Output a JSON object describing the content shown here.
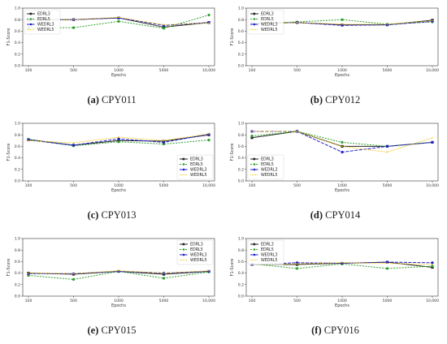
{
  "series_styles": [
    {
      "name": "EDRL3",
      "color": "#222222",
      "dash": "",
      "marker": "square"
    },
    {
      "name": "EDRL5",
      "color": "#2ca02c",
      "dash": "2,1.5",
      "marker": "circle"
    },
    {
      "name": "WEDRL3",
      "color": "#1f1fcc",
      "dash": "4,1.5",
      "marker": "circle"
    },
    {
      "name": "WEDRL5",
      "color": "#f2c300",
      "dash": "1,1",
      "marker": "none"
    }
  ],
  "chart_data": [
    {
      "type": "line",
      "caption_label": "(a)",
      "caption_text": "CPY011",
      "x": [
        "100",
        "500",
        "1000",
        "5000",
        "10,000"
      ],
      "xlabel": "Epochs",
      "ylabel": "F1-Score",
      "ylim": [
        0,
        1.0
      ],
      "yticks": [
        "0.0",
        "0.2",
        "0.4",
        "0.6",
        "0.8",
        "1.0"
      ],
      "legend_position": "top-left",
      "series": [
        {
          "name": "EDRL3",
          "values": [
            0.8,
            0.8,
            0.83,
            0.67,
            0.75
          ]
        },
        {
          "name": "EDRL5",
          "values": [
            0.66,
            0.66,
            0.77,
            0.65,
            0.88
          ]
        },
        {
          "name": "WEDRL3",
          "values": [
            0.8,
            0.8,
            0.83,
            0.7,
            0.75
          ]
        },
        {
          "name": "WEDRL5",
          "values": [
            0.8,
            0.8,
            0.84,
            0.71,
            0.74
          ]
        }
      ]
    },
    {
      "type": "line",
      "caption_label": "(b)",
      "caption_text": "CPY012",
      "x": [
        "100",
        "500",
        "1000",
        "5000",
        "10,000"
      ],
      "xlabel": "Epochs",
      "ylabel": "F1-Score",
      "ylim": [
        0,
        1.0
      ],
      "yticks": [
        "0.0",
        "0.2",
        "0.4",
        "0.6",
        "0.8",
        "1.0"
      ],
      "legend_position": "top-left",
      "series": [
        {
          "name": "EDRL3",
          "values": [
            0.73,
            0.75,
            0.71,
            0.71,
            0.79
          ]
        },
        {
          "name": "EDRL5",
          "values": [
            0.73,
            0.76,
            0.8,
            0.72,
            0.76
          ]
        },
        {
          "name": "WEDRL3",
          "values": [
            0.73,
            0.75,
            0.7,
            0.71,
            0.77
          ]
        },
        {
          "name": "WEDRL5",
          "values": [
            0.73,
            0.75,
            0.72,
            0.72,
            0.78
          ]
        }
      ]
    },
    {
      "type": "line",
      "caption_label": "(c)",
      "caption_text": "CPY013",
      "x": [
        "100",
        "500",
        "1000",
        "5000",
        "10,000"
      ],
      "xlabel": "Epochs",
      "ylabel": "F1-Score",
      "ylim": [
        0,
        1.0
      ],
      "yticks": [
        "0.0",
        "0.2",
        "0.4",
        "0.6",
        "0.8",
        "1.0"
      ],
      "legend_position": "bottom-right",
      "series": [
        {
          "name": "EDRL3",
          "values": [
            0.72,
            0.62,
            0.7,
            0.69,
            0.8
          ]
        },
        {
          "name": "EDRL5",
          "values": [
            0.72,
            0.61,
            0.68,
            0.64,
            0.71
          ]
        },
        {
          "name": "WEDRL3",
          "values": [
            0.71,
            0.62,
            0.73,
            0.67,
            0.81
          ]
        },
        {
          "name": "WEDRL5",
          "values": [
            0.7,
            0.66,
            0.76,
            0.7,
            0.82
          ]
        }
      ]
    },
    {
      "type": "line",
      "caption_label": "(d)",
      "caption_text": "CPY014",
      "x": [
        "100",
        "500",
        "1000",
        "5000",
        "10,000"
      ],
      "xlabel": "Epochs",
      "ylabel": "F1-Score",
      "ylim": [
        0,
        1.0
      ],
      "yticks": [
        "0.0",
        "0.2",
        "0.4",
        "0.6",
        "0.8",
        "1.0"
      ],
      "legend_position": "bottom-left",
      "series": [
        {
          "name": "EDRL3",
          "values": [
            0.75,
            0.86,
            0.6,
            0.6,
            0.67
          ]
        },
        {
          "name": "EDRL5",
          "values": [
            0.78,
            0.86,
            0.67,
            0.6,
            0.67
          ]
        },
        {
          "name": "WEDRL3",
          "values": [
            0.86,
            0.86,
            0.5,
            0.6,
            0.67
          ]
        },
        {
          "name": "WEDRL5",
          "values": [
            0.86,
            0.86,
            0.6,
            0.5,
            0.75
          ]
        }
      ]
    },
    {
      "type": "line",
      "caption_label": "(e)",
      "caption_text": "CPY015",
      "x": [
        "100",
        "500",
        "1000",
        "5000",
        "10,000"
      ],
      "xlabel": "Epochs",
      "ylabel": "F1-Score",
      "ylim": [
        0,
        1.0
      ],
      "yticks": [
        "0.0",
        "0.2",
        "0.4",
        "0.6",
        "0.8",
        "1.0"
      ],
      "legend_position": "top-right",
      "series": [
        {
          "name": "EDRL3",
          "values": [
            0.4,
            0.38,
            0.43,
            0.38,
            0.43
          ]
        },
        {
          "name": "EDRL5",
          "values": [
            0.36,
            0.29,
            0.43,
            0.31,
            0.42
          ]
        },
        {
          "name": "WEDRL3",
          "values": [
            0.39,
            0.39,
            0.43,
            0.4,
            0.43
          ]
        },
        {
          "name": "WEDRL5",
          "values": [
            0.4,
            0.39,
            0.44,
            0.4,
            0.44
          ]
        }
      ]
    },
    {
      "type": "line",
      "caption_label": "(f)",
      "caption_text": "CPY016",
      "x": [
        "100",
        "500",
        "1000",
        "5000",
        "10,000"
      ],
      "xlabel": "Epochs",
      "ylabel": "F1-Score",
      "ylim": [
        0,
        1.0
      ],
      "yticks": [
        "0.0",
        "0.2",
        "0.4",
        "0.6",
        "0.8",
        "1.0"
      ],
      "legend_position": "top-left",
      "series": [
        {
          "name": "EDRL3",
          "values": [
            0.55,
            0.55,
            0.57,
            0.59,
            0.5
          ]
        },
        {
          "name": "EDRL5",
          "values": [
            0.56,
            0.48,
            0.56,
            0.48,
            0.52
          ]
        },
        {
          "name": "WEDRL3",
          "values": [
            0.55,
            0.58,
            0.57,
            0.59,
            0.58
          ]
        },
        {
          "name": "WEDRL5",
          "values": [
            0.55,
            0.56,
            0.58,
            0.57,
            0.55
          ]
        }
      ]
    }
  ]
}
